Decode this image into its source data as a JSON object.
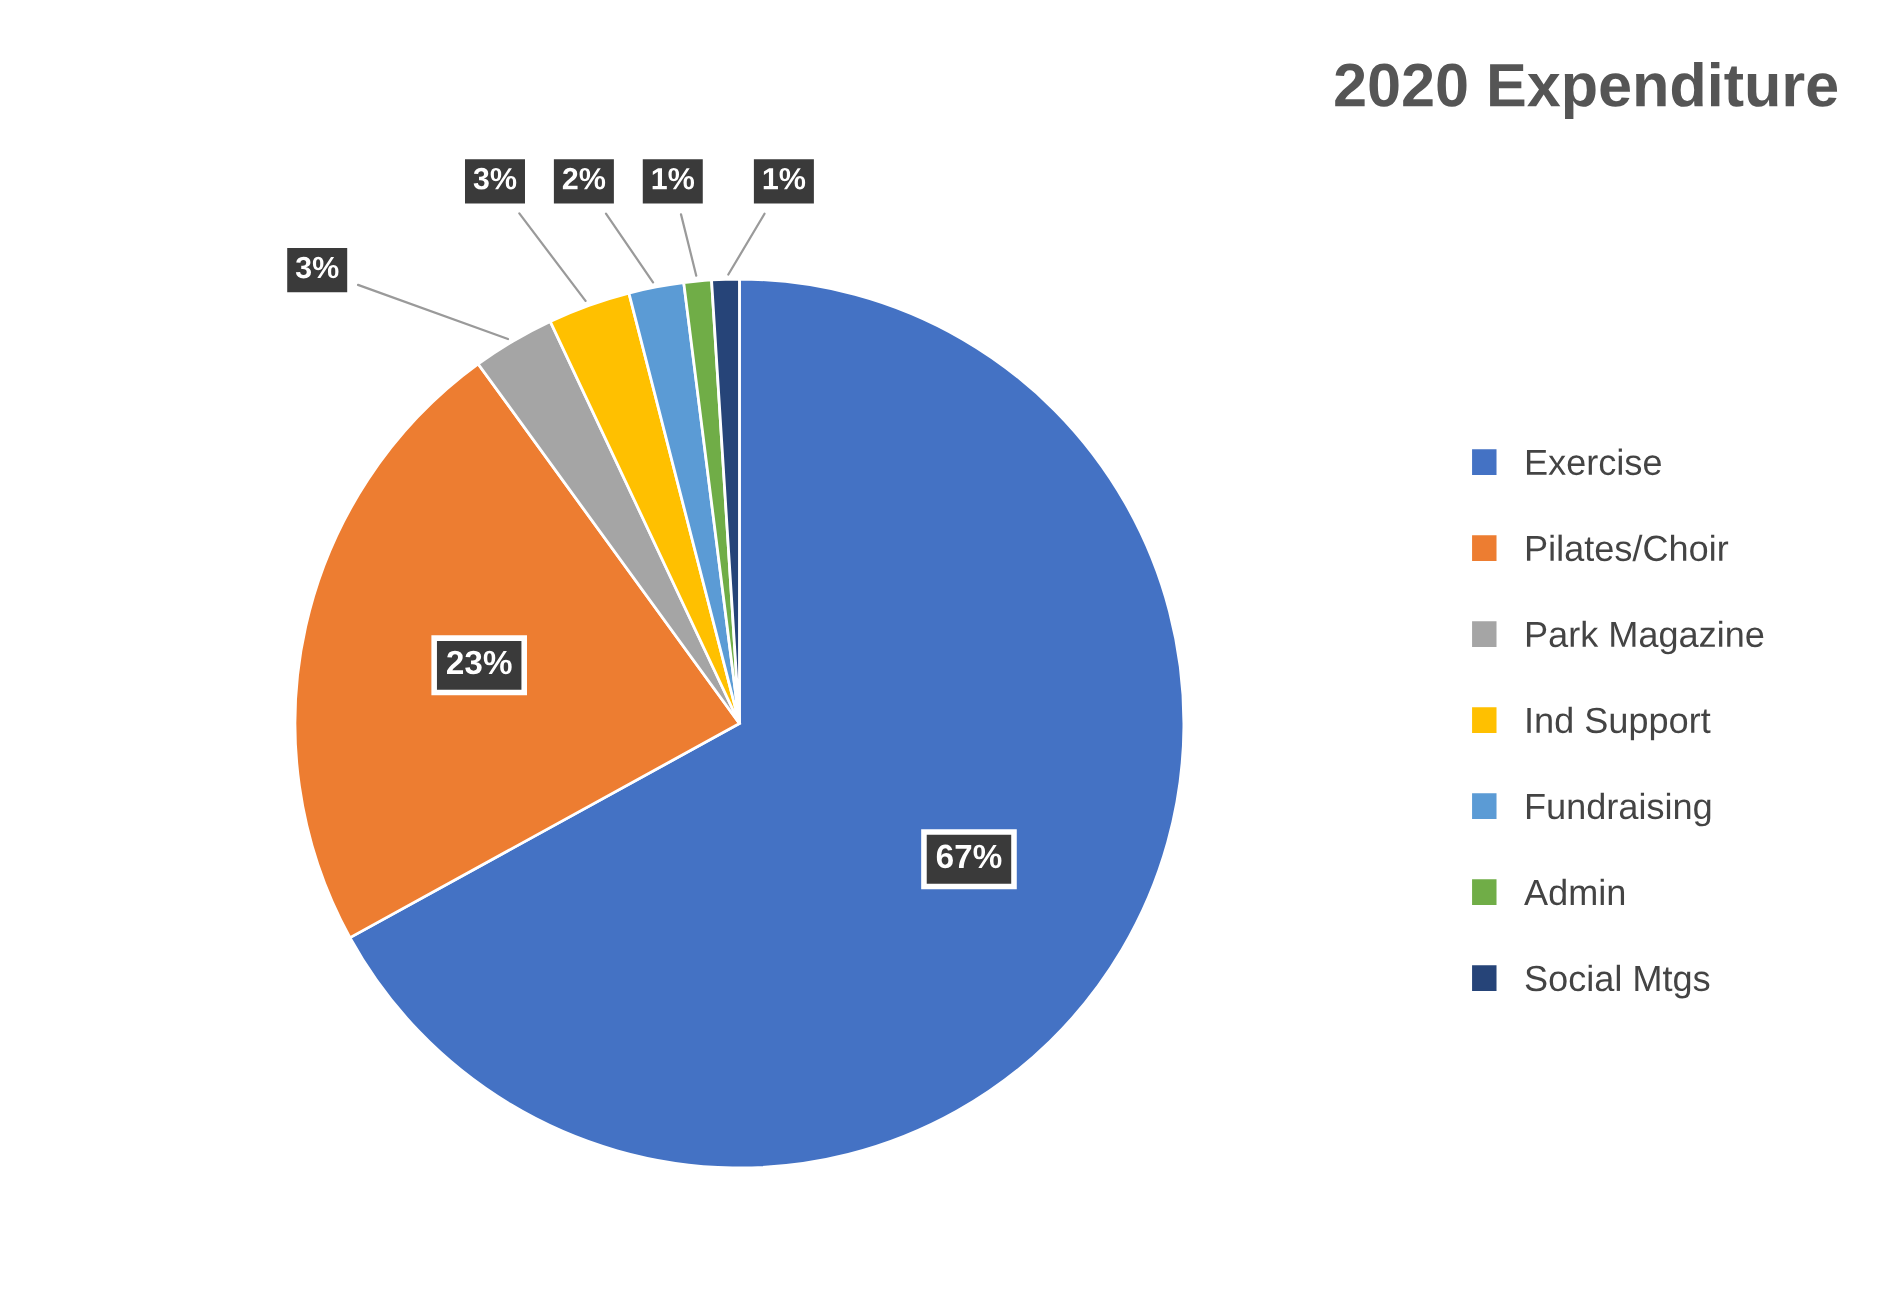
{
  "chart_data": {
    "type": "pie",
    "title": "2020 Expenditure",
    "categories": [
      "Exercise",
      "Pilates/Choir",
      "Park Magazine",
      "Ind Support",
      "Fundraising",
      "Admin",
      "Social Mtgs"
    ],
    "values": [
      67,
      23,
      3,
      3,
      2,
      1,
      1
    ],
    "value_labels": [
      "67%",
      "23%",
      "3%",
      "3%",
      "2%",
      "1%",
      "1%"
    ],
    "colors": [
      "#4472c4",
      "#ed7d31",
      "#a5a5a5",
      "#ffc000",
      "#5b9bd5",
      "#70ad47",
      "#264478"
    ],
    "legend": "right"
  }
}
